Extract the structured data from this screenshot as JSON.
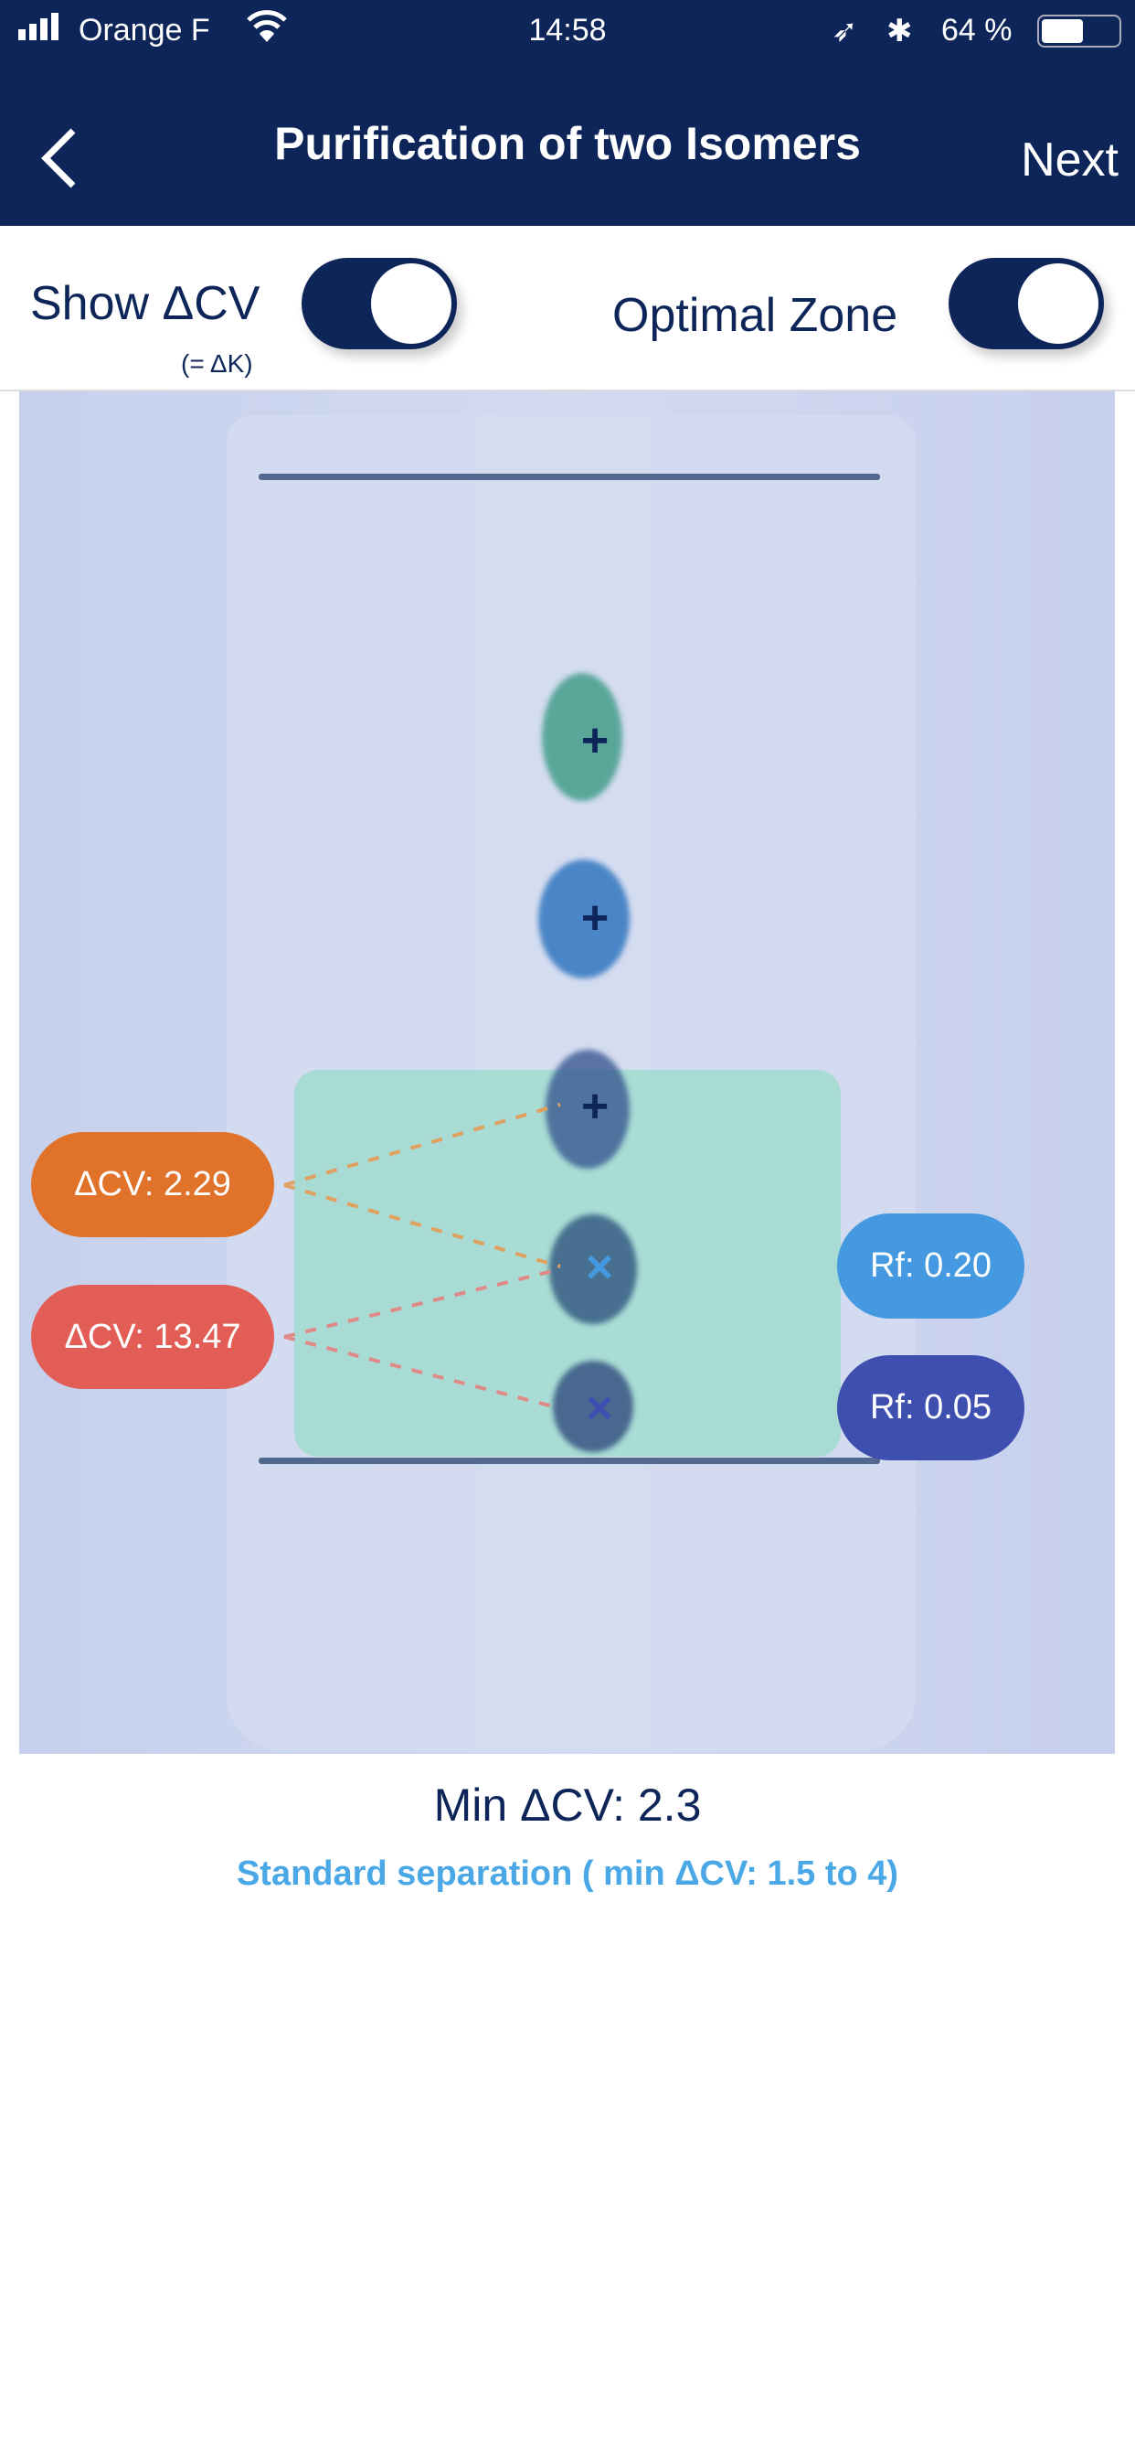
{
  "status_bar": {
    "carrier": "Orange F",
    "time": "14:58",
    "battery": "64 %"
  },
  "nav": {
    "title": "Purification of two Isomers",
    "next_label": "Next",
    "back_icon": "chevron-left-icon"
  },
  "toggles": {
    "show_dcv_label": "Show ΔCV",
    "show_dcv_sub": "(= ΔK)",
    "show_dcv_on": true,
    "optimal_zone_label": "Optimal Zone",
    "optimal_zone_on": true
  },
  "plate": {
    "delta_labels": [
      {
        "text": "ΔCV: 2.29",
        "color": "#e0722a"
      },
      {
        "text": "ΔCV: 13.47",
        "color": "#e15d55"
      }
    ],
    "rf_labels": [
      {
        "text": "Rf: 0.20",
        "color": "#4599e0"
      },
      {
        "text": "Rf: 0.05",
        "color": "#3f4fb0"
      }
    ],
    "zone_color": "#96dcc8"
  },
  "footer": {
    "min_dcv": "Min ΔCV: 2.3",
    "separation": "Standard separation ( min ΔCV: 1.5 to 4)",
    "separation_color": "#4aa8e6"
  }
}
